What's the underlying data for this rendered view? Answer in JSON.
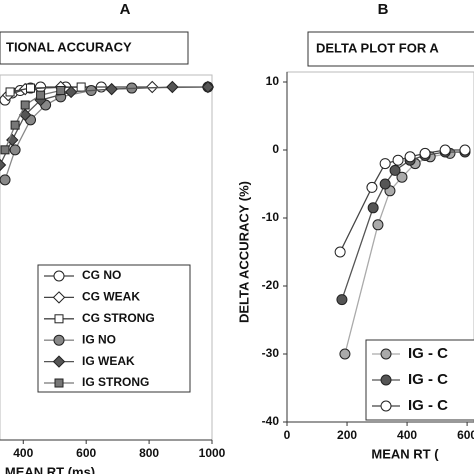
{
  "chart_data": [
    {
      "type": "line",
      "panel": "A",
      "title": "TIONAL ACCURACY",
      "xlabel": "MEAN RT (ms)",
      "xlim": [
        326,
        1000
      ],
      "xticks": [
        400,
        600,
        800,
        1000
      ],
      "ylim": [
        0,
        1
      ],
      "series": [
        {
          "name": "CG NO",
          "color": "#ffffff",
          "marker": "circle",
          "x": [
            342,
            365,
            390,
            423,
            455,
            535,
            648
          ],
          "values": [
            0.963,
            0.983,
            0.99,
            0.997,
            1.0,
            1.0,
            1.0
          ]
        },
        {
          "name": "CG WEAK",
          "color": "#ffffff",
          "marker": "diamond",
          "x": [
            352,
            406,
            519,
            810
          ],
          "values": [
            0.977,
            0.994,
            1.0,
            1.0
          ]
        },
        {
          "name": "CG STRONG",
          "color": "#ffffff",
          "marker": "square",
          "x": [
            358,
            423,
            584
          ],
          "values": [
            0.986,
            0.997,
            1.0
          ]
        },
        {
          "name": "IG NO",
          "color": "#888888",
          "marker": "circle",
          "x": [
            342,
            374,
            423,
            471,
            519,
            616,
            745,
            987
          ],
          "values": [
            0.737,
            0.822,
            0.907,
            0.949,
            0.972,
            0.99,
            0.997,
            1.0
          ]
        },
        {
          "name": "IG WEAK",
          "color": "#555555",
          "marker": "diamond",
          "x": [
            326,
            365,
            406,
            455,
            552,
            681,
            874,
            987
          ],
          "values": [
            0.779,
            0.85,
            0.921,
            0.963,
            0.986,
            0.994,
            1.0,
            1.0
          ]
        },
        {
          "name": "IG STRONG",
          "color": "#777777",
          "marker": "square",
          "x": [
            342,
            374,
            406,
            455,
            519
          ],
          "values": [
            0.822,
            0.892,
            0.949,
            0.977,
            0.99
          ]
        }
      ]
    },
    {
      "type": "line",
      "panel": "B",
      "title": "DELTA PLOT FOR A",
      "xlabel": "MEAN RT (",
      "ylabel": "DELTA ACCURACY (%)",
      "xlim": [
        0,
        623
      ],
      "xticks": [
        0,
        200,
        400,
        600
      ],
      "ylim": [
        -40,
        10
      ],
      "yticks": [
        -40,
        -30,
        -20,
        -10,
        0,
        10
      ],
      "series": [
        {
          "name": "IG - C",
          "color": "#aaaaaa",
          "marker": "circle",
          "x": [
            193,
            303,
            343,
            383,
            427,
            477,
            543
          ],
          "values": [
            -30,
            -11,
            -6,
            -4,
            -2,
            -1,
            -0.5
          ]
        },
        {
          "name": "IG - C",
          "color": "#555555",
          "marker": "circle",
          "x": [
            183,
            287,
            327,
            360,
            410,
            460,
            527,
            593
          ],
          "values": [
            -22,
            -8.5,
            -5,
            -3,
            -1.5,
            -0.8,
            -0.3,
            -0.3
          ]
        },
        {
          "name": "IG - C",
          "color": "#ffffff",
          "marker": "circle",
          "x": [
            177,
            283,
            327,
            370,
            410,
            460,
            527,
            593
          ],
          "values": [
            -15,
            -5.5,
            -2,
            -1.5,
            -1,
            -0.5,
            0,
            0
          ]
        }
      ]
    }
  ]
}
